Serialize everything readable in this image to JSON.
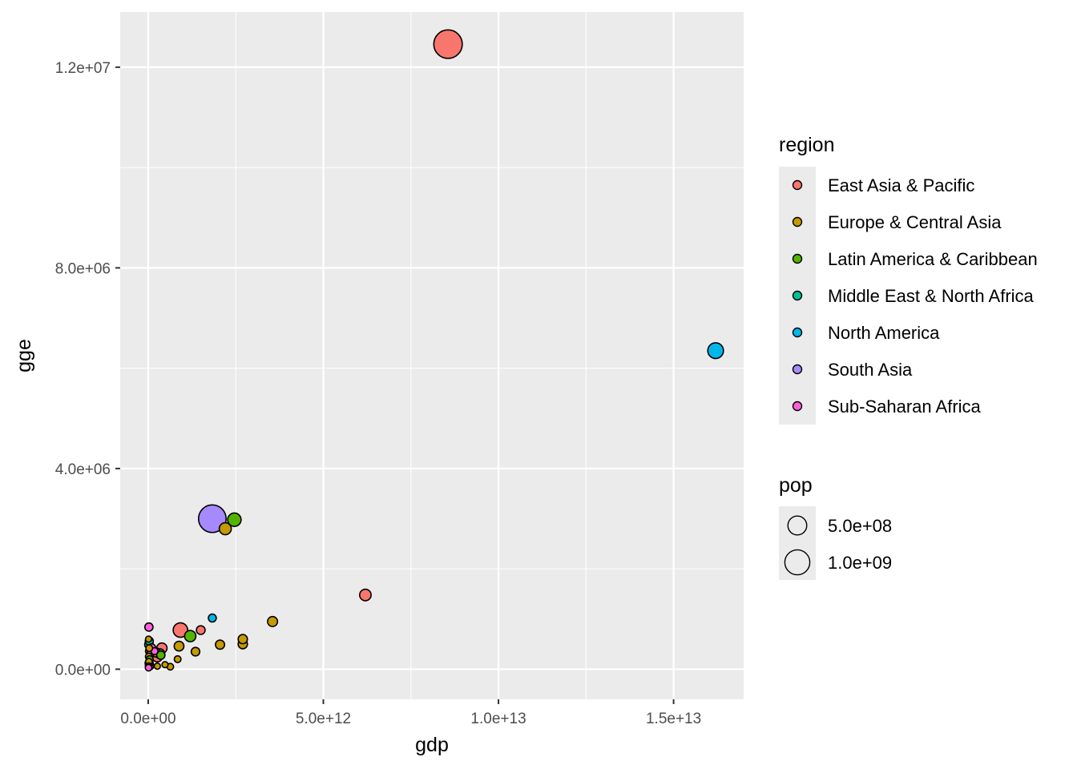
{
  "chart_data": {
    "type": "scatter",
    "title": "",
    "xlabel": "gdp",
    "ylabel": "gge",
    "xlim": [
      -800000000000.0,
      17000000000000.0
    ],
    "ylim": [
      -600000.0,
      13100000.0
    ],
    "x_ticks": [
      0,
      5000000000000.0,
      10000000000000.0,
      15000000000000.0
    ],
    "x_tick_labels": [
      "0.0e+00",
      "5.0e+12",
      "1.0e+13",
      "1.5e+13"
    ],
    "y_ticks": [
      0,
      4000000.0,
      8000000.0,
      12000000.0
    ],
    "y_tick_labels": [
      "0.0e+00",
      "4.0e+06",
      "8.0e+06",
      "1.2e+07"
    ],
    "grid": true,
    "colors": {
      "panel_bg": "#ebebeb",
      "grid": "#ffffff",
      "East Asia & Pacific": "#F8766D",
      "Europe & Central Asia": "#C49A00",
      "Latin America & Caribbean": "#53B400",
      "Middle East & North Africa": "#00C094",
      "North America": "#00B6EB",
      "South Asia": "#A58AFF",
      "Sub-Saharan Africa": "#FB61D7"
    },
    "legend_region": {
      "title": "region",
      "entries": [
        "East Asia & Pacific",
        "Europe & Central Asia",
        "Latin America & Caribbean",
        "Middle East & North Africa",
        "North America",
        "South Asia",
        "Sub-Saharan Africa"
      ]
    },
    "legend_pop": {
      "title": "pop",
      "values": [
        500000000.0,
        1000000000.0
      ],
      "labels": [
        "5.0e+08",
        "1.0e+09"
      ]
    },
    "points": [
      {
        "region": "East Asia & Pacific",
        "gdp": 8560000000000.0,
        "gge": 12460000.0,
        "pop": 1360000000.0
      },
      {
        "region": "North America",
        "gdp": 16200000000000.0,
        "gge": 6350000.0,
        "pop": 310000000.0
      },
      {
        "region": "South Asia",
        "gdp": 1830000000000.0,
        "gge": 3000000.0,
        "pop": 1260000000.0
      },
      {
        "region": "Latin America & Caribbean",
        "gdp": 2460000000000.0,
        "gge": 2980000.0,
        "pop": 200000000.0
      },
      {
        "region": "Europe & Central Asia",
        "gdp": 2200000000000.0,
        "gge": 2800000.0,
        "pop": 145000000.0
      },
      {
        "region": "East Asia & Pacific",
        "gdp": 6200000000000.0,
        "gge": 1480000.0,
        "pop": 127000000.0
      },
      {
        "region": "North America",
        "gdp": 1830000000000.0,
        "gge": 1020000.0,
        "pop": 35000000.0
      },
      {
        "region": "Europe & Central Asia",
        "gdp": 3550000000000.0,
        "gge": 950000.0,
        "pop": 81000000.0
      },
      {
        "region": "East Asia & Pacific",
        "gdp": 920000000000.0,
        "gge": 780000.0,
        "pop": 250000000.0
      },
      {
        "region": "East Asia & Pacific",
        "gdp": 1500000000000.0,
        "gge": 780000.0,
        "pop": 50000000.0
      },
      {
        "region": "Latin America & Caribbean",
        "gdp": 1200000000000.0,
        "gge": 660000.0,
        "pop": 120000000.0
      },
      {
        "region": "Europe & Central Asia",
        "gdp": 2700000000000.0,
        "gge": 600000.0,
        "pop": 63000000.0
      },
      {
        "region": "Europe & Central Asia",
        "gdp": 2700000000000.0,
        "gge": 500000.0,
        "pop": 64000000.0
      },
      {
        "region": "Europe & Central Asia",
        "gdp": 2050000000000.0,
        "gge": 490000.0,
        "pop": 60000000.0
      },
      {
        "region": "Europe & Central Asia",
        "gdp": 880000000000.0,
        "gge": 460000.0,
        "pop": 75000000.0
      },
      {
        "region": "East Asia & Pacific",
        "gdp": 390000000000.0,
        "gge": 420000.0,
        "pop": 90000000.0
      },
      {
        "region": "Europe & Central Asia",
        "gdp": 1350000000000.0,
        "gge": 350000.0,
        "pop": 47000000.0
      },
      {
        "region": "East Asia & Pacific",
        "gdp": 200000000000.0,
        "gge": 340000.0,
        "pop": 66000000.0
      },
      {
        "region": "Middle East & North Africa",
        "gdp": 330000000000.0,
        "gge": 310000.0,
        "pop": 75000000.0
      },
      {
        "region": "Latin America & Caribbean",
        "gdp": 360000000000.0,
        "gge": 280000.0,
        "pop": 42000000.0
      },
      {
        "region": "East Asia & Pacific",
        "gdp": 260000000000.0,
        "gge": 250000.0,
        "pop": 90000000.0
      },
      {
        "region": "Europe & Central Asia",
        "gdp": 840000000000.0,
        "gge": 200000.0,
        "pop": 17000000.0
      },
      {
        "region": "Europe & Central Asia",
        "gdp": 630000000000.0,
        "gge": 50000.0,
        "pop": 15000000.0
      },
      {
        "region": "Europe & Central Asia",
        "gdp": 480000000000.0,
        "gge": 90000.0,
        "pop": 10000000.0
      },
      {
        "region": "Europe & Central Asia",
        "gdp": 260000000000.0,
        "gge": 60000.0,
        "pop": 10000000.0
      },
      {
        "region": "Middle East & North Africa",
        "gdp": 30000000000.0,
        "gge": 560000.0,
        "pop": 37000000.0
      },
      {
        "region": "Middle East & North Africa",
        "gdp": 20000000000.0,
        "gge": 490000.0,
        "pop": 45000000.0
      },
      {
        "region": "Europe & Central Asia",
        "gdp": 10000000000.0,
        "gge": 600000.0,
        "pop": 10000000.0
      },
      {
        "region": "Europe & Central Asia",
        "gdp": 30000000000.0,
        "gge": 420000.0,
        "pop": 17000000.0
      },
      {
        "region": "East Asia & Pacific",
        "gdp": 40000000000.0,
        "gge": 360000.0,
        "pop": 40000000.0
      },
      {
        "region": "Europe & Central Asia",
        "gdp": 20000000000.0,
        "gge": 250000.0,
        "pop": 20000000.0
      },
      {
        "region": "Latin America & Caribbean",
        "gdp": 40000000000.0,
        "gge": 200000.0,
        "pop": 20000000.0
      },
      {
        "region": "Europe & Central Asia",
        "gdp": 20000000000.0,
        "gge": 150000.0,
        "pop": 15000000.0
      },
      {
        "region": "Sub-Saharan Africa",
        "gdp": 15000000000.0,
        "gge": 120000.0,
        "pop": 25000000.0
      },
      {
        "region": "Middle East & North Africa",
        "gdp": 25000000000.0,
        "gge": 90000.0,
        "pop": 20000000.0
      },
      {
        "region": "Europe & Central Asia",
        "gdp": 15000000000.0,
        "gge": 60000.0,
        "pop": 15000000.0
      },
      {
        "region": "Sub-Saharan Africa",
        "gdp": 10000000000.0,
        "gge": 30000.0,
        "pop": 15000000.0
      },
      {
        "region": "Sub-Saharan Africa",
        "gdp": 20000000000.0,
        "gge": 840000.0,
        "pop": 40000000.0
      },
      {
        "region": "Sub-Saharan Africa",
        "gdp": 100000000000.0,
        "gge": 430000.0,
        "pop": 30000000.0
      },
      {
        "region": "Sub-Saharan Africa",
        "gdp": 180000000000.0,
        "gge": 360000.0,
        "pop": 20000000.0
      },
      {
        "region": "Sub-Saharan Africa",
        "gdp": 60000000000.0,
        "gge": 300000.0,
        "pop": 25000000.0
      },
      {
        "region": "Sub-Saharan Africa",
        "gdp": 30000000000.0,
        "gge": 140000.0,
        "pop": 30000000.0
      },
      {
        "region": "Sub-Saharan Africa",
        "gdp": 40000000000.0,
        "gge": 70000.0,
        "pop": 45000000.0
      }
    ]
  }
}
